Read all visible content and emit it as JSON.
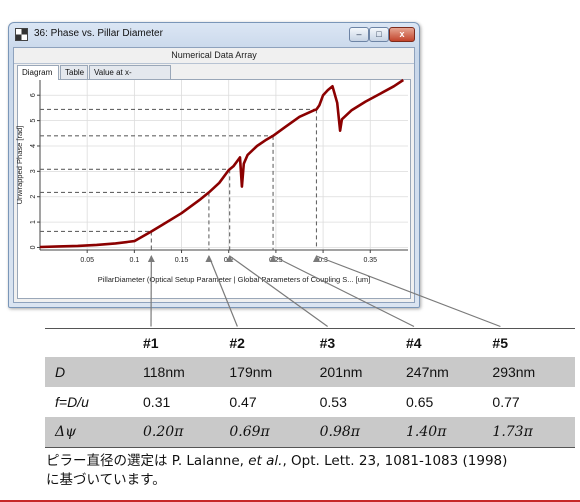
{
  "window": {
    "title": "36: Phase vs. Pillar Diameter",
    "subheader": "Numerical Data Array",
    "controls": {
      "minimize": "–",
      "maximize": "□",
      "close": "x"
    },
    "tabs": [
      "Diagram",
      "Table",
      "Value at x-Coordinate"
    ],
    "active_tab": "Diagram"
  },
  "chart_data": {
    "type": "line",
    "xlabel": "PillarDiameter (Optical Setup Parameter | Global Parameters of Coupling S... [um]",
    "ylabel": "Unwrapped Phase [rad]",
    "xlim": [
      0,
      0.39
    ],
    "ylim": [
      -0.1,
      6.6
    ],
    "x_ticks": [
      0.05,
      0.1,
      0.15,
      0.2,
      0.25,
      0.3,
      0.35
    ],
    "x_tick_labels": [
      "0.05",
      "0.1",
      "0.15",
      "0.2",
      "0.25",
      "0.3",
      "0.35"
    ],
    "y_ticks": [
      0,
      1,
      2,
      3,
      4,
      5,
      6
    ],
    "y_tick_labels": [
      "0",
      "1",
      "2",
      "3",
      "4",
      "5",
      "6"
    ],
    "grid": true,
    "line_color": "#8b0000",
    "series": [
      {
        "points": [
          [
            0,
            0.02
          ],
          [
            0.02,
            0.04
          ],
          [
            0.04,
            0.06
          ],
          [
            0.06,
            0.1
          ],
          [
            0.08,
            0.16
          ],
          [
            0.1,
            0.25
          ],
          [
            0.118,
            0.63
          ],
          [
            0.13,
            0.9
          ],
          [
            0.15,
            1.35
          ],
          [
            0.17,
            1.9
          ],
          [
            0.179,
            2.17
          ],
          [
            0.19,
            2.55
          ],
          [
            0.2,
            3.05
          ],
          [
            0.205,
            3.2
          ],
          [
            0.212,
            3.55
          ],
          [
            0.214,
            2.4
          ],
          [
            0.216,
            3.3
          ],
          [
            0.22,
            3.65
          ],
          [
            0.23,
            4.0
          ],
          [
            0.24,
            4.25
          ],
          [
            0.247,
            4.4
          ],
          [
            0.26,
            4.75
          ],
          [
            0.275,
            5.15
          ],
          [
            0.29,
            5.4
          ],
          [
            0.293,
            5.44
          ],
          [
            0.296,
            5.6
          ],
          [
            0.298,
            5.8
          ],
          [
            0.3,
            6.0
          ],
          [
            0.305,
            6.2
          ],
          [
            0.31,
            6.35
          ],
          [
            0.315,
            5.7
          ],
          [
            0.318,
            4.6
          ],
          [
            0.32,
            5.05
          ],
          [
            0.33,
            5.4
          ],
          [
            0.345,
            5.75
          ],
          [
            0.36,
            6.05
          ],
          [
            0.375,
            6.35
          ],
          [
            0.385,
            6.6
          ]
        ]
      }
    ],
    "markers": [
      {
        "x": 0.118,
        "y": 0.63,
        "table_index": 0
      },
      {
        "x": 0.179,
        "y": 2.17,
        "table_index": 1
      },
      {
        "x": 0.201,
        "y": 3.08,
        "table_index": 2
      },
      {
        "x": 0.247,
        "y": 4.4,
        "table_index": 3
      },
      {
        "x": 0.293,
        "y": 5.44,
        "table_index": 4
      }
    ]
  },
  "table": {
    "headers": [
      "",
      "#1",
      "#2",
      "#3",
      "#4",
      "#5"
    ],
    "rows": [
      {
        "label": "D",
        "values": [
          "118nm",
          "179nm",
          "201nm",
          "247nm",
          "293nm"
        ]
      },
      {
        "label": "f=D/u",
        "values": [
          "0.31",
          "0.47",
          "0.53",
          "0.65",
          "0.77"
        ]
      },
      {
        "label": "Δψ",
        "values": [
          "0.20π",
          "0.69π",
          "0.98π",
          "1.40π",
          "1.73π"
        ]
      }
    ]
  },
  "caption": {
    "line1_pre": "ピラー直径の選定は P. Lalanne, ",
    "line1_italic": "et al.",
    "line1_post": ", Opt. Lett. 23, 1081-1083 (1998)",
    "line2": "に基づいています。"
  }
}
